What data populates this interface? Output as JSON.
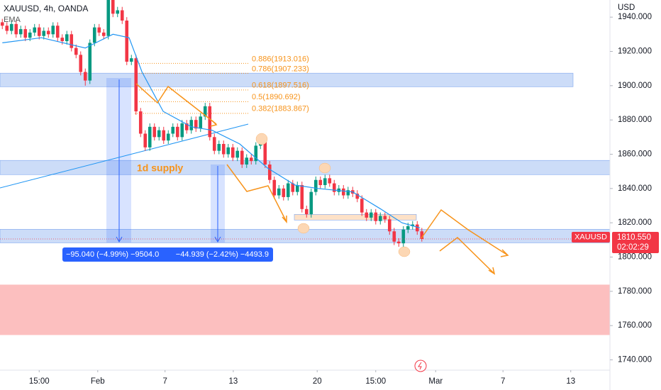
{
  "chart_data": {
    "type": "candlestick",
    "title": "XAUUSD, 4h, OANDA",
    "y_axis_label": "USD",
    "up_color": "#089981",
    "down_color": "#f23645",
    "xlim": [
      0,
      132.3
    ],
    "ylim": [
      1734,
      1950
    ],
    "yticks": [
      {
        "value": 1940,
        "label": "1940.000"
      },
      {
        "value": 1920,
        "label": "1920.000"
      },
      {
        "value": 1900,
        "label": "1900.000"
      },
      {
        "value": 1880,
        "label": "1880.000"
      },
      {
        "value": 1860,
        "label": "1860.000"
      },
      {
        "value": 1840,
        "label": "1840.000"
      },
      {
        "value": 1820,
        "label": "1820.000"
      },
      {
        "value": 1800,
        "label": "1800.000"
      },
      {
        "value": 1780,
        "label": "1780.000"
      },
      {
        "value": 1760,
        "label": "1760.000"
      },
      {
        "value": 1740,
        "label": "1740.000"
      }
    ],
    "xticks": [
      {
        "value": 8.5,
        "label": "15:00"
      },
      {
        "value": 21.2,
        "label": "Feb"
      },
      {
        "value": 35.8,
        "label": "7"
      },
      {
        "value": 50.6,
        "label": "13"
      },
      {
        "value": 68.8,
        "label": "20"
      },
      {
        "value": 81.5,
        "label": "15:00"
      },
      {
        "value": 94.5,
        "label": "Mar"
      },
      {
        "value": 109.1,
        "label": "7"
      },
      {
        "value": 123.8,
        "label": "13"
      }
    ],
    "open": [
      1937,
      1935,
      1932,
      1936,
      1930,
      1933,
      1928,
      1931,
      1934,
      1929,
      1932,
      1930,
      1935,
      1928,
      1926,
      1930,
      1922,
      1918,
      1908,
      1903,
      1925,
      1934,
      1931,
      1929,
      1950,
      1942,
      1944,
      1938,
      1914,
      1916,
      1885,
      1872,
      1864,
      1876,
      1870,
      1874,
      1868,
      1872,
      1876,
      1870,
      1878,
      1874,
      1880,
      1875,
      1882,
      1888,
      1870,
      1862,
      1866,
      1860,
      1864,
      1858,
      1862,
      1854,
      1858,
      1856,
      1865,
      1868,
      1854,
      1845,
      1836,
      1840,
      1835,
      1843,
      1838,
      1842,
      1828,
      1825,
      1838,
      1845,
      1842,
      1846,
      1843,
      1838,
      1840,
      1836,
      1839,
      1837,
      1834,
      1826,
      1823,
      1826,
      1821,
      1824,
      1822,
      1815,
      1809,
      1808,
      1816,
      1818,
      1819,
      1815
    ],
    "high": [
      1939,
      1937,
      1938,
      1938,
      1935,
      1935,
      1933,
      1936,
      1936,
      1934,
      1934,
      1937,
      1937,
      1930,
      1932,
      1932,
      1924,
      1920,
      1910,
      1927,
      1936,
      1936,
      1933,
      1950,
      1950,
      1946,
      1946,
      1940,
      1918,
      1918,
      1887,
      1874,
      1878,
      1878,
      1876,
      1876,
      1874,
      1878,
      1878,
      1880,
      1880,
      1882,
      1882,
      1884,
      1890,
      1890,
      1872,
      1868,
      1868,
      1866,
      1866,
      1864,
      1864,
      1860,
      1860,
      1867,
      1870,
      1870,
      1856,
      1847,
      1842,
      1842,
      1845,
      1845,
      1844,
      1844,
      1830,
      1840,
      1847,
      1847,
      1848,
      1848,
      1845,
      1842,
      1842,
      1841,
      1841,
      1839,
      1836,
      1828,
      1828,
      1828,
      1826,
      1826,
      1824,
      1817,
      1811,
      1818,
      1820,
      1821,
      1821,
      1817
    ],
    "low": [
      1933,
      1930,
      1930,
      1928,
      1928,
      1926,
      1926,
      1929,
      1927,
      1927,
      1928,
      1928,
      1926,
      1924,
      1924,
      1920,
      1916,
      1906,
      1900,
      1901,
      1923,
      1929,
      1927,
      1927,
      1940,
      1940,
      1936,
      1912,
      1912,
      1883,
      1870,
      1862,
      1862,
      1868,
      1868,
      1866,
      1866,
      1870,
      1868,
      1868,
      1872,
      1872,
      1873,
      1873,
      1880,
      1868,
      1860,
      1860,
      1858,
      1858,
      1856,
      1856,
      1852,
      1852,
      1854,
      1854,
      1863,
      1852,
      1843,
      1834,
      1834,
      1833,
      1833,
      1836,
      1836,
      1826,
      1823,
      1823,
      1836,
      1840,
      1840,
      1841,
      1836,
      1836,
      1834,
      1834,
      1835,
      1832,
      1824,
      1821,
      1821,
      1819,
      1819,
      1820,
      1813,
      1807,
      1806,
      1806,
      1814,
      1816,
      1813,
      1809
    ],
    "close": [
      1935,
      1932,
      1936,
      1930,
      1933,
      1928,
      1931,
      1934,
      1929,
      1932,
      1930,
      1935,
      1928,
      1926,
      1930,
      1922,
      1918,
      1908,
      1903,
      1925,
      1934,
      1931,
      1929,
      1950,
      1942,
      1944,
      1938,
      1914,
      1916,
      1885,
      1872,
      1864,
      1876,
      1870,
      1874,
      1868,
      1872,
      1876,
      1870,
      1878,
      1874,
      1880,
      1875,
      1882,
      1888,
      1870,
      1862,
      1866,
      1860,
      1864,
      1858,
      1862,
      1854,
      1858,
      1856,
      1865,
      1868,
      1854,
      1845,
      1836,
      1840,
      1835,
      1843,
      1838,
      1842,
      1828,
      1825,
      1838,
      1845,
      1842,
      1846,
      1843,
      1838,
      1840,
      1836,
      1839,
      1837,
      1834,
      1826,
      1823,
      1826,
      1821,
      1824,
      1822,
      1815,
      1809,
      1808,
      1816,
      1818,
      1819,
      1815,
      1810.55
    ],
    "ema": {
      "name": "EMA",
      "color": "#2196f3",
      "x": [
        0.5,
        9,
        18.5,
        24.5,
        28,
        30.8,
        35.4,
        41.5,
        46,
        52,
        58,
        64,
        69,
        76.5,
        82.6,
        87.2,
        91.1
      ],
      "values": [
        1925,
        1928,
        1922,
        1930,
        1928,
        1908,
        1885,
        1876,
        1874,
        1866,
        1852,
        1842,
        1840,
        1838,
        1828,
        1820,
        1817
      ]
    },
    "fib_levels": [
      {
        "label": "0.886(1913.016)",
        "value": 1913.016
      },
      {
        "label": "0.786(1907.233)",
        "value": 1907.233
      },
      {
        "label": "0.618(1897.516)",
        "value": 1897.516
      },
      {
        "label": "0.5(1890.692)",
        "value": 1890.692
      },
      {
        "label": "0.382(1883.867)",
        "value": 1883.867
      }
    ],
    "zones": [
      {
        "low": 1899.4,
        "high": 1907.3,
        "color": "#bbd0f5"
      },
      {
        "low": 1848.1,
        "high": 1856.4,
        "color": "#bbd0f5"
      },
      {
        "low": 1808.3,
        "high": 1816.2,
        "color": "#bbd0f5"
      },
      {
        "low": 1754.5,
        "high": 1783.9,
        "color": "#fcbcbc"
      },
      {
        "low": 1821.6,
        "high": 1824.9,
        "color": "#fcd7b4"
      }
    ],
    "zone_label": "1d supply",
    "measurements": [
      "−95.040 (−4.99%) −9504.0",
      "−44.939 (−2.42%) −4493.9"
    ],
    "symbol_tag": "XAUUSD",
    "last_price": {
      "value": 1810.55,
      "label": "1810.550"
    },
    "countdown": "02:02:29"
  }
}
